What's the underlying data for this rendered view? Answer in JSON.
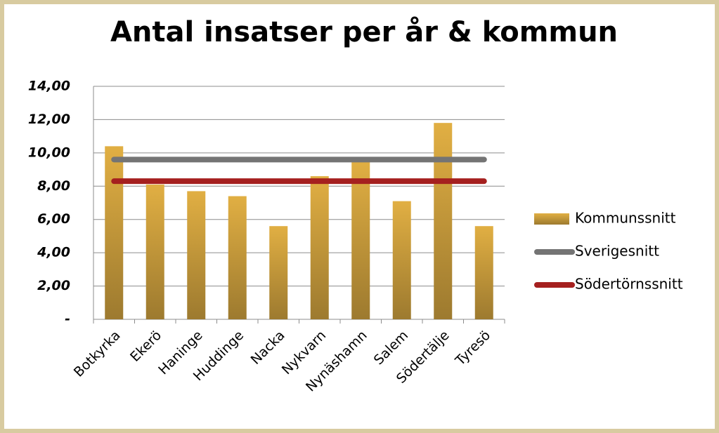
{
  "chart_data": {
    "type": "bar",
    "title": "Antal insatser per år & kommun",
    "categories": [
      "Botkyrka",
      "Ekerö",
      "Haninge",
      "Huddinge",
      "Nacka",
      "Nykvarn",
      "Nynäshamn",
      "Salem",
      "Södertälje",
      "Tyresö"
    ],
    "series": [
      {
        "name": "Kommunssnitt",
        "type": "bar",
        "color": "#c99c3c",
        "values": [
          10.4,
          8.1,
          7.7,
          7.4,
          5.6,
          8.6,
          9.5,
          7.1,
          11.8,
          5.6
        ]
      },
      {
        "name": "Sverigesnitt",
        "type": "line",
        "color": "#747474",
        "values": [
          9.6,
          9.6,
          9.6,
          9.6,
          9.6,
          9.6,
          9.6,
          9.6,
          9.6,
          9.6
        ]
      },
      {
        "name": "Södertörnssnitt",
        "type": "line",
        "color": "#a5201f",
        "values": [
          8.3,
          8.3,
          8.3,
          8.3,
          8.3,
          8.3,
          8.3,
          8.3,
          8.3,
          8.3
        ]
      }
    ],
    "ylim": [
      0,
      14
    ],
    "yticks": [
      {
        "value": 0,
        "label": "-"
      },
      {
        "value": 2,
        "label": "2,00"
      },
      {
        "value": 4,
        "label": "4,00"
      },
      {
        "value": 6,
        "label": "6,00"
      },
      {
        "value": 8,
        "label": "8,00"
      },
      {
        "value": 10,
        "label": "10,00"
      },
      {
        "value": 12,
        "label": "12,00"
      },
      {
        "value": 14,
        "label": "14,00"
      }
    ],
    "grid": true,
    "legend": "right"
  }
}
